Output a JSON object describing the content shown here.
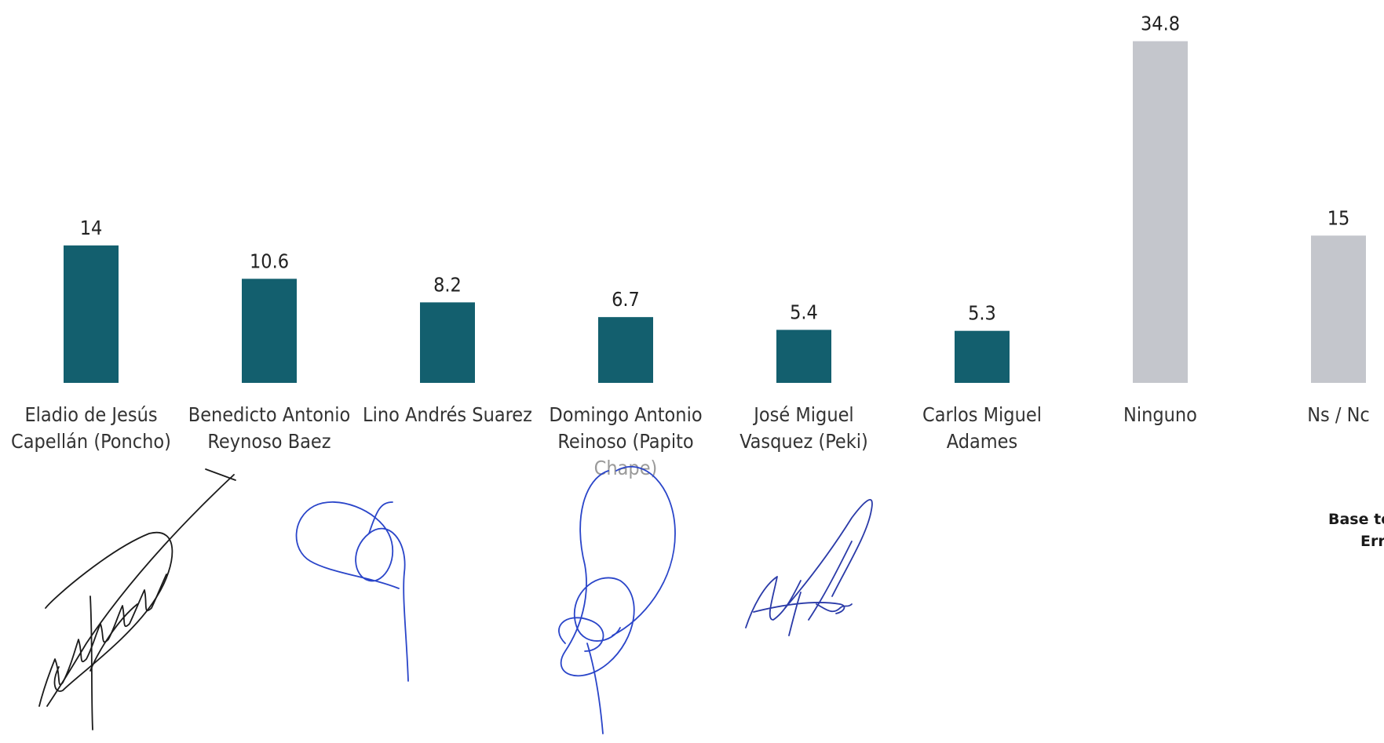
{
  "chart_data": {
    "type": "bar",
    "categories": [
      [
        "Eladio de Jesús",
        "Capellán (Poncho)"
      ],
      [
        "Benedicto Antonio",
        "Reynoso Baez"
      ],
      [
        "Lino Andrés Suarez"
      ],
      [
        "Domingo Antonio",
        "Reinoso (Papito",
        "Chape)"
      ],
      [
        "José Miguel",
        "Vasquez (Peki)"
      ],
      [
        "Carlos Miguel",
        "Adames"
      ],
      [
        "Ninguno"
      ],
      [
        "Ns / Nc"
      ]
    ],
    "values": [
      14,
      10.6,
      8.2,
      6.7,
      5.4,
      5.3,
      34.8,
      15
    ],
    "value_labels": [
      "14",
      "10.6",
      "8.2",
      "6.7",
      "5.4",
      "5.3",
      "34.8",
      "15"
    ],
    "bar_colors": [
      "#135f6e",
      "#135f6e",
      "#135f6e",
      "#135f6e",
      "#135f6e",
      "#135f6e",
      "#c4c6cc",
      "#c4c6cc"
    ],
    "ylim": [
      0,
      35
    ],
    "grid": false,
    "title": "",
    "xlabel": "",
    "ylabel": ""
  },
  "footnote": {
    "line1": "Base to",
    "line2": "Err"
  },
  "signatures": [
    "signature-1",
    "signature-2",
    "signature-3",
    "signature-4"
  ]
}
